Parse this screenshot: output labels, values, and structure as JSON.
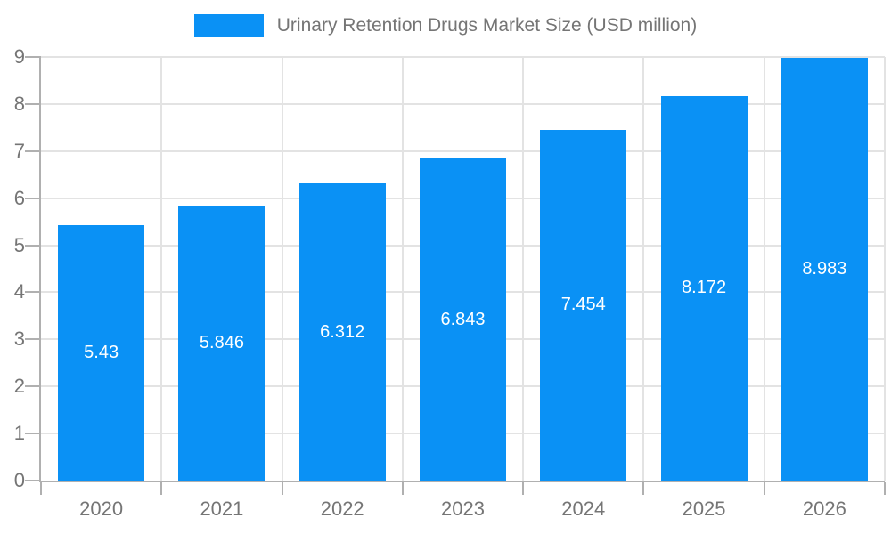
{
  "colors": {
    "bar": "#0a91f5",
    "grid": "#e3e3e3",
    "axis": "#b0b0b0",
    "text": "#757575",
    "value_label": "#ffffff",
    "background": "#ffffff"
  },
  "legend": {
    "label": "Urinary Retention Drugs Market Size (USD million)"
  },
  "chart_data": {
    "type": "bar",
    "title": "Urinary Retention Drugs Market Size (USD million)",
    "categories": [
      "2020",
      "2021",
      "2022",
      "2023",
      "2024",
      "2025",
      "2026"
    ],
    "values": [
      5.43,
      5.846,
      6.312,
      6.843,
      7.454,
      8.172,
      8.983
    ],
    "value_labels": [
      "5.43",
      "5.846",
      "6.312",
      "6.843",
      "7.454",
      "8.172",
      "8.983"
    ],
    "xlabel": "",
    "ylabel": "",
    "ylim": [
      0,
      9
    ],
    "y_ticks": [
      0,
      1,
      2,
      3,
      4,
      5,
      6,
      7,
      8,
      9
    ],
    "grid": true,
    "legend_position": "top-center",
    "bar_label_position": "center"
  }
}
